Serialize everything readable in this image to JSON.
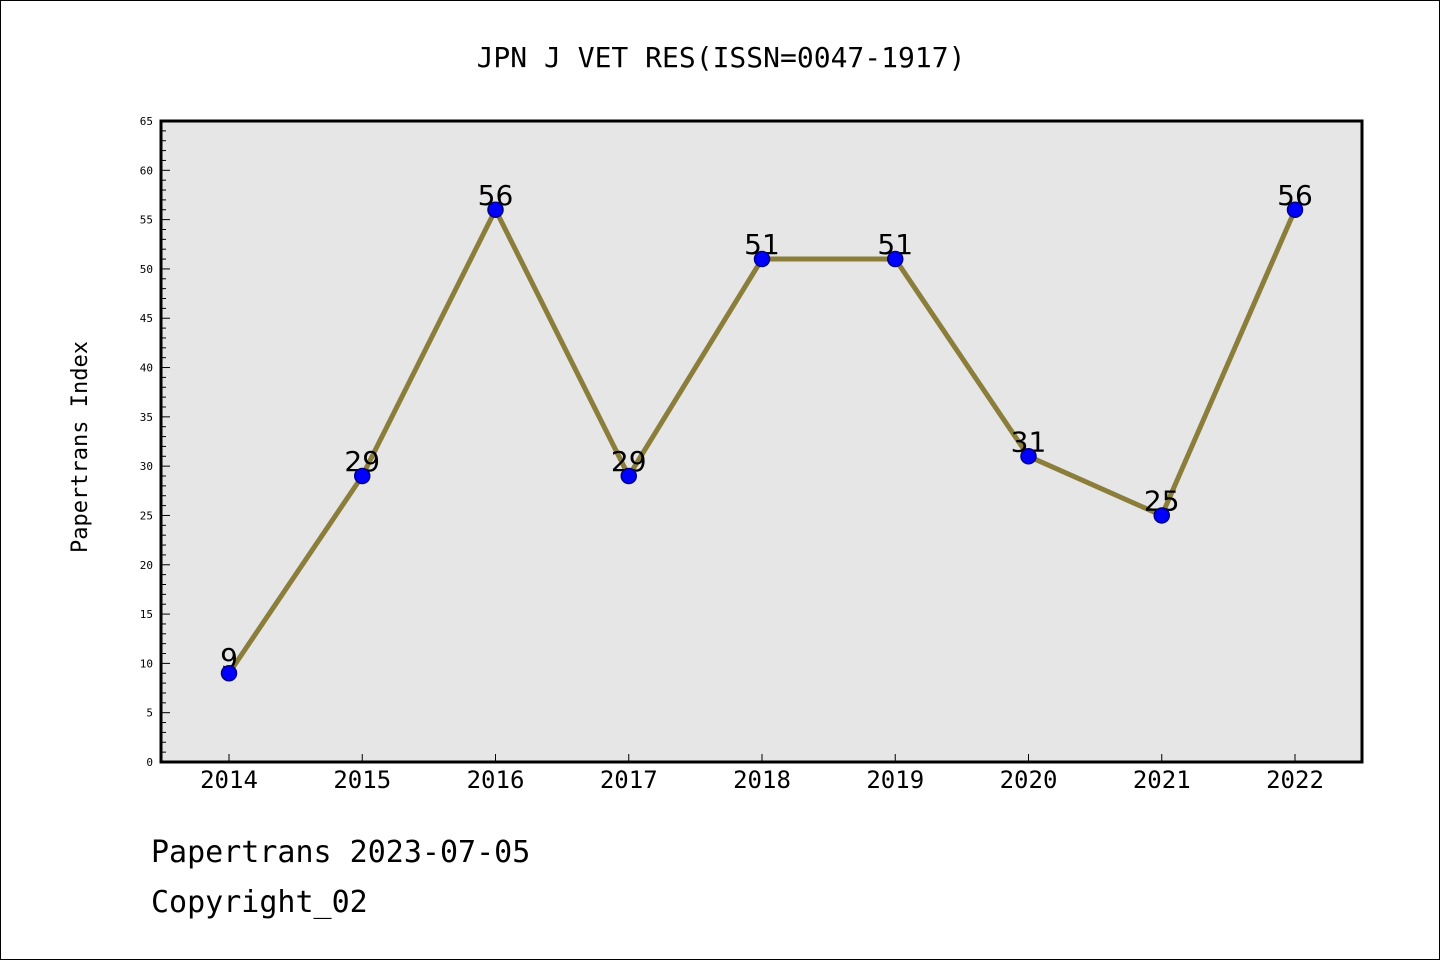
{
  "chart_data": {
    "type": "line",
    "title": "JPN J VET RES(ISSN=0047-1917)",
    "ylabel": "Papertrans Index",
    "xlabel": "",
    "categories": [
      "2014",
      "2015",
      "2016",
      "2017",
      "2018",
      "2019",
      "2020",
      "2021",
      "2022"
    ],
    "values": [
      9,
      29,
      56,
      29,
      51,
      51,
      31,
      25,
      56
    ],
    "data_labels": [
      "9",
      "29",
      "56",
      "29",
      "51",
      "51",
      "31",
      "25",
      "56"
    ],
    "ylim": [
      0,
      65
    ],
    "yticks": [
      "0",
      "5",
      "10",
      "15",
      "20",
      "25",
      "30",
      "35",
      "40",
      "45",
      "50",
      "55",
      "60",
      "65"
    ],
    "grid": false,
    "legend": "none",
    "colors": {
      "line": "#8B7D3A",
      "marker_fill": "#0000FF",
      "marker_edge": "#000080",
      "plot_background": "#E6E6E6"
    }
  },
  "footer": {
    "line1": "Papertrans 2023-07-05",
    "line2": "Copyright_02"
  }
}
